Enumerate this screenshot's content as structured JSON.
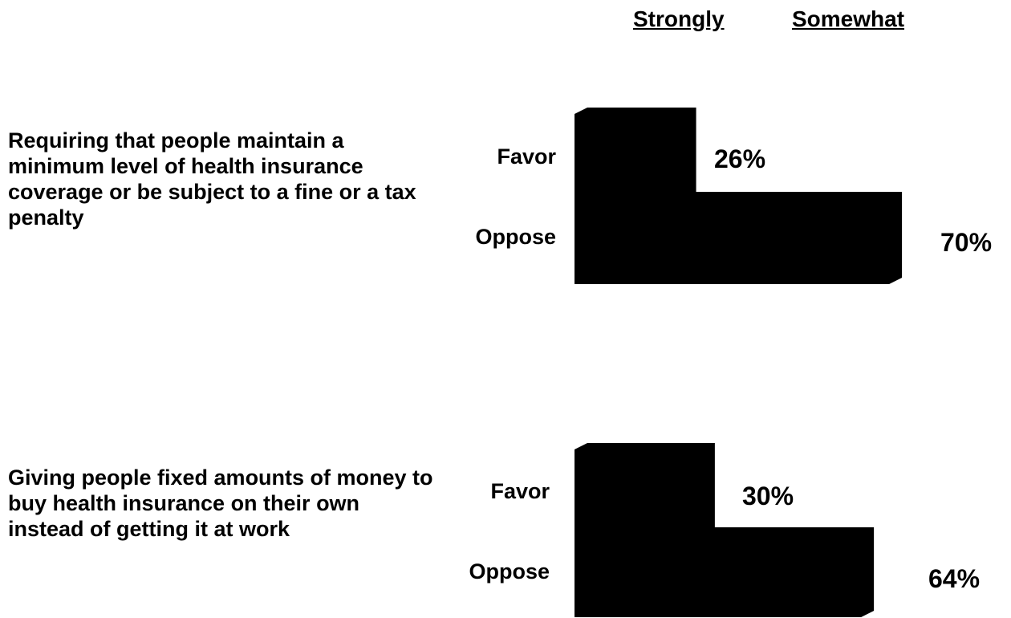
{
  "header": {
    "strongly": "Strongly",
    "somewhat": "Somewhat"
  },
  "colors": {
    "bar": "#000000",
    "text": "#000000",
    "background": "#ffffff"
  },
  "chart_data": {
    "type": "bar",
    "orientation": "horizontal",
    "categories": [
      "Favor",
      "Oppose"
    ],
    "groups": [
      {
        "question": "Requiring that people maintain a minimum level of health insurance coverage or be subject to a fine or a tax penalty",
        "labels": [
          "Favor",
          "Oppose"
        ],
        "values": [
          26,
          70
        ],
        "value_labels": [
          "26%",
          "70%"
        ]
      },
      {
        "question": "Giving people fixed amounts of money to buy health insurance on their own instead of getting it at work",
        "labels": [
          "Favor",
          "Oppose"
        ],
        "values": [
          30,
          64
        ],
        "value_labels": [
          "30%",
          "64%"
        ]
      }
    ],
    "columns": [
      "Strongly",
      "Somewhat"
    ],
    "unit": "%",
    "xlim": [
      0,
      100
    ],
    "grid": false,
    "legend": "none"
  }
}
